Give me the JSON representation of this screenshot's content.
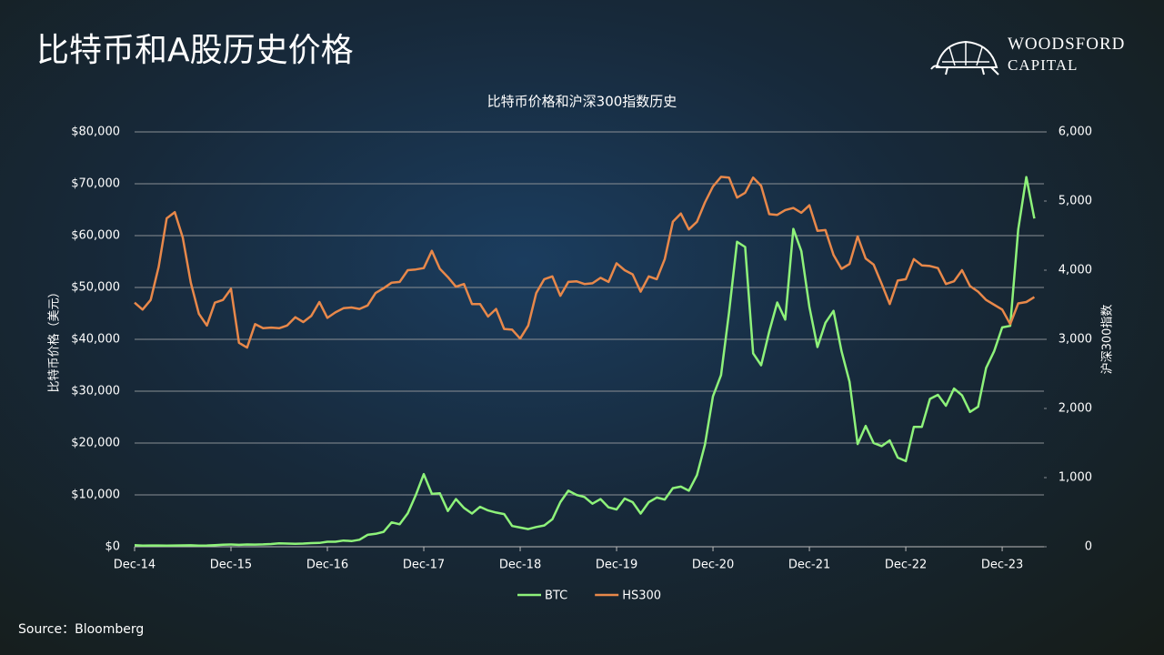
{
  "header": {
    "title": "比特币和A股历史价格",
    "logo_line1": "WOODSFORD",
    "logo_line2": "CAPITAL"
  },
  "footer": {
    "source": "Source：Bloomberg"
  },
  "chart_data": {
    "type": "line",
    "title": "比特币价格和沪深300指数历史",
    "y_label": "比特币价格（美元）",
    "y2_label": "沪深300指数",
    "categories": [
      "Dec-14",
      null,
      null,
      null,
      null,
      null,
      null,
      null,
      null,
      null,
      null,
      null,
      "Dec-15",
      null,
      null,
      null,
      null,
      null,
      null,
      null,
      null,
      null,
      null,
      null,
      "Dec-16",
      null,
      null,
      null,
      null,
      null,
      null,
      null,
      null,
      null,
      null,
      null,
      "Dec-17",
      null,
      null,
      null,
      null,
      null,
      null,
      null,
      null,
      null,
      null,
      null,
      "Dec-18",
      null,
      null,
      null,
      null,
      null,
      null,
      null,
      null,
      null,
      null,
      null,
      "Dec-19",
      null,
      null,
      null,
      null,
      null,
      null,
      null,
      null,
      null,
      null,
      null,
      "Dec-20",
      null,
      null,
      null,
      null,
      null,
      null,
      null,
      null,
      null,
      null,
      null,
      "Dec-21",
      null,
      null,
      null,
      null,
      null,
      null,
      null,
      null,
      null,
      null,
      null,
      "Dec-22",
      null,
      null,
      null,
      null,
      null,
      null,
      null,
      null,
      null,
      null,
      null,
      "Dec-23",
      null,
      null,
      null,
      null
    ],
    "series": [
      {
        "name": "BTC",
        "color": "#8ef27a",
        "axis": "y",
        "values": [
          320,
          220,
          250,
          240,
          230,
          240,
          260,
          280,
          230,
          240,
          310,
          380,
          430,
          370,
          440,
          420,
          450,
          530,
          670,
          620,
          570,
          610,
          700,
          740,
          960,
          970,
          1190,
          1080,
          1350,
          2300,
          2500,
          2870,
          4700,
          4340,
          6450,
          9950,
          14000,
          10200,
          10300,
          6900,
          9200,
          7500,
          6400,
          7700,
          7000,
          6600,
          6300,
          4000,
          3700,
          3400,
          3800,
          4100,
          5300,
          8600,
          10800,
          10000,
          9600,
          8300,
          9200,
          7600,
          7200,
          9300,
          8600,
          6400,
          8600,
          9500,
          9100,
          11300,
          11600,
          10800,
          13800,
          19700,
          29000,
          33100,
          45200,
          58800,
          57800,
          37300,
          35000,
          41500,
          47100,
          43800,
          61300,
          57000,
          46300,
          38500,
          43200,
          45500,
          37700,
          31800,
          19800,
          23300,
          20000,
          19400,
          20500,
          17200,
          16500,
          23100,
          23100,
          28500,
          29300,
          27200,
          30500,
          29200,
          26000,
          27000,
          34500,
          37700,
          42300,
          42600,
          61200,
          71300,
          63300
        ]
      },
      {
        "name": "HS300",
        "color": "#e8884a",
        "axis": "y2",
        "values": [
          3530,
          3430,
          3570,
          4050,
          4750,
          4840,
          4470,
          3820,
          3370,
          3200,
          3530,
          3570,
          3730,
          2950,
          2880,
          3220,
          3160,
          3170,
          3160,
          3200,
          3320,
          3250,
          3340,
          3540,
          3310,
          3390,
          3450,
          3460,
          3440,
          3490,
          3670,
          3740,
          3820,
          3830,
          4000,
          4010,
          4030,
          4280,
          4020,
          3900,
          3760,
          3800,
          3510,
          3510,
          3330,
          3440,
          3150,
          3140,
          3010,
          3200,
          3670,
          3870,
          3910,
          3630,
          3830,
          3840,
          3800,
          3810,
          3890,
          3830,
          4100,
          4000,
          3940,
          3690,
          3910,
          3870,
          4160,
          4700,
          4820,
          4590,
          4700,
          4980,
          5210,
          5350,
          5340,
          5050,
          5120,
          5340,
          5220,
          4810,
          4800,
          4870,
          4900,
          4830,
          4940,
          4570,
          4580,
          4220,
          4020,
          4090,
          4490,
          4170,
          4080,
          3800,
          3510,
          3850,
          3870,
          4160,
          4070,
          4060,
          4030,
          3800,
          3840,
          4000,
          3770,
          3690,
          3570,
          3500,
          3430,
          3220,
          3520,
          3540,
          3610
        ]
      }
    ],
    "ylim": [
      0,
      80000
    ],
    "yticks": [
      {
        "value": 0,
        "label": "$0"
      },
      {
        "value": 10000,
        "label": "$10,000"
      },
      {
        "value": 20000,
        "label": "$20,000"
      },
      {
        "value": 30000,
        "label": "$30,000"
      },
      {
        "value": 40000,
        "label": "$40,000"
      },
      {
        "value": 50000,
        "label": "$50,000"
      },
      {
        "value": 60000,
        "label": "$60,000"
      },
      {
        "value": 70000,
        "label": "$70,000"
      },
      {
        "value": 80000,
        "label": "$80,000"
      }
    ],
    "y2lim": [
      0,
      6000
    ],
    "y2ticks": [
      0,
      {
        "value": 1000,
        "label": "1,000"
      },
      {
        "value": 2000,
        "label": "2,000"
      },
      {
        "value": 3000,
        "label": "3,000"
      },
      {
        "value": 4000,
        "label": "4,000"
      },
      {
        "value": 5000,
        "label": "5,000"
      },
      {
        "value": 6000,
        "label": "6,000"
      }
    ],
    "grid": true,
    "legend": "bottom"
  }
}
